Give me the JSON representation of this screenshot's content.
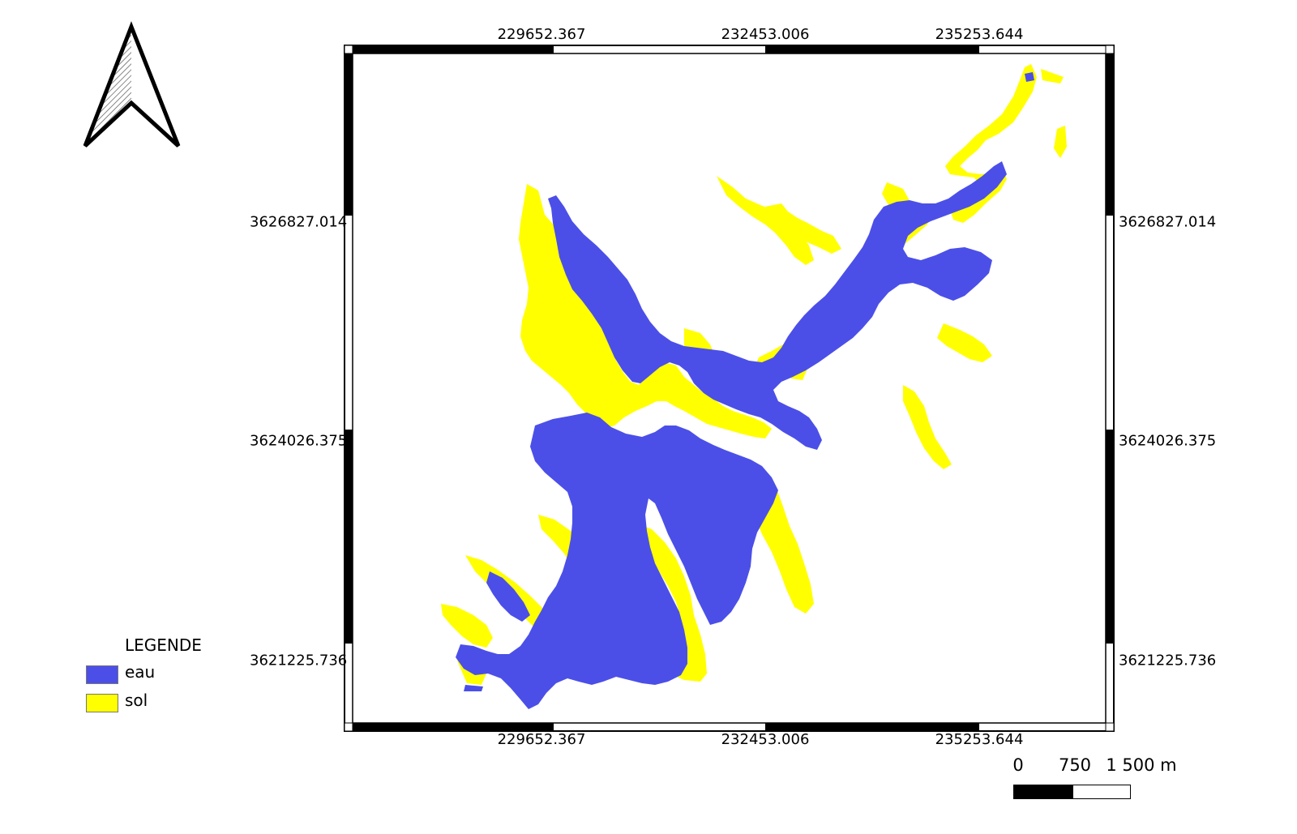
{
  "map": {
    "frame_x_labels": [
      "229652.367",
      "232453.006",
      "235253.644"
    ],
    "frame_y_labels": [
      "3626827.014",
      "3624026.375",
      "3621225.736"
    ]
  },
  "legend": {
    "title": "LEGENDE",
    "items": [
      {
        "label": "eau",
        "color": "#4b4fe8"
      },
      {
        "label": "sol",
        "color": "#ffff00"
      }
    ]
  },
  "scale_bar": {
    "labels": [
      "0",
      "750",
      "1 500 m"
    ]
  },
  "north_arrow": {
    "icon": "north-arrow-icon"
  },
  "colors": {
    "water": "#4b4fe8",
    "land": "#ffff00",
    "frame": "#000000"
  }
}
